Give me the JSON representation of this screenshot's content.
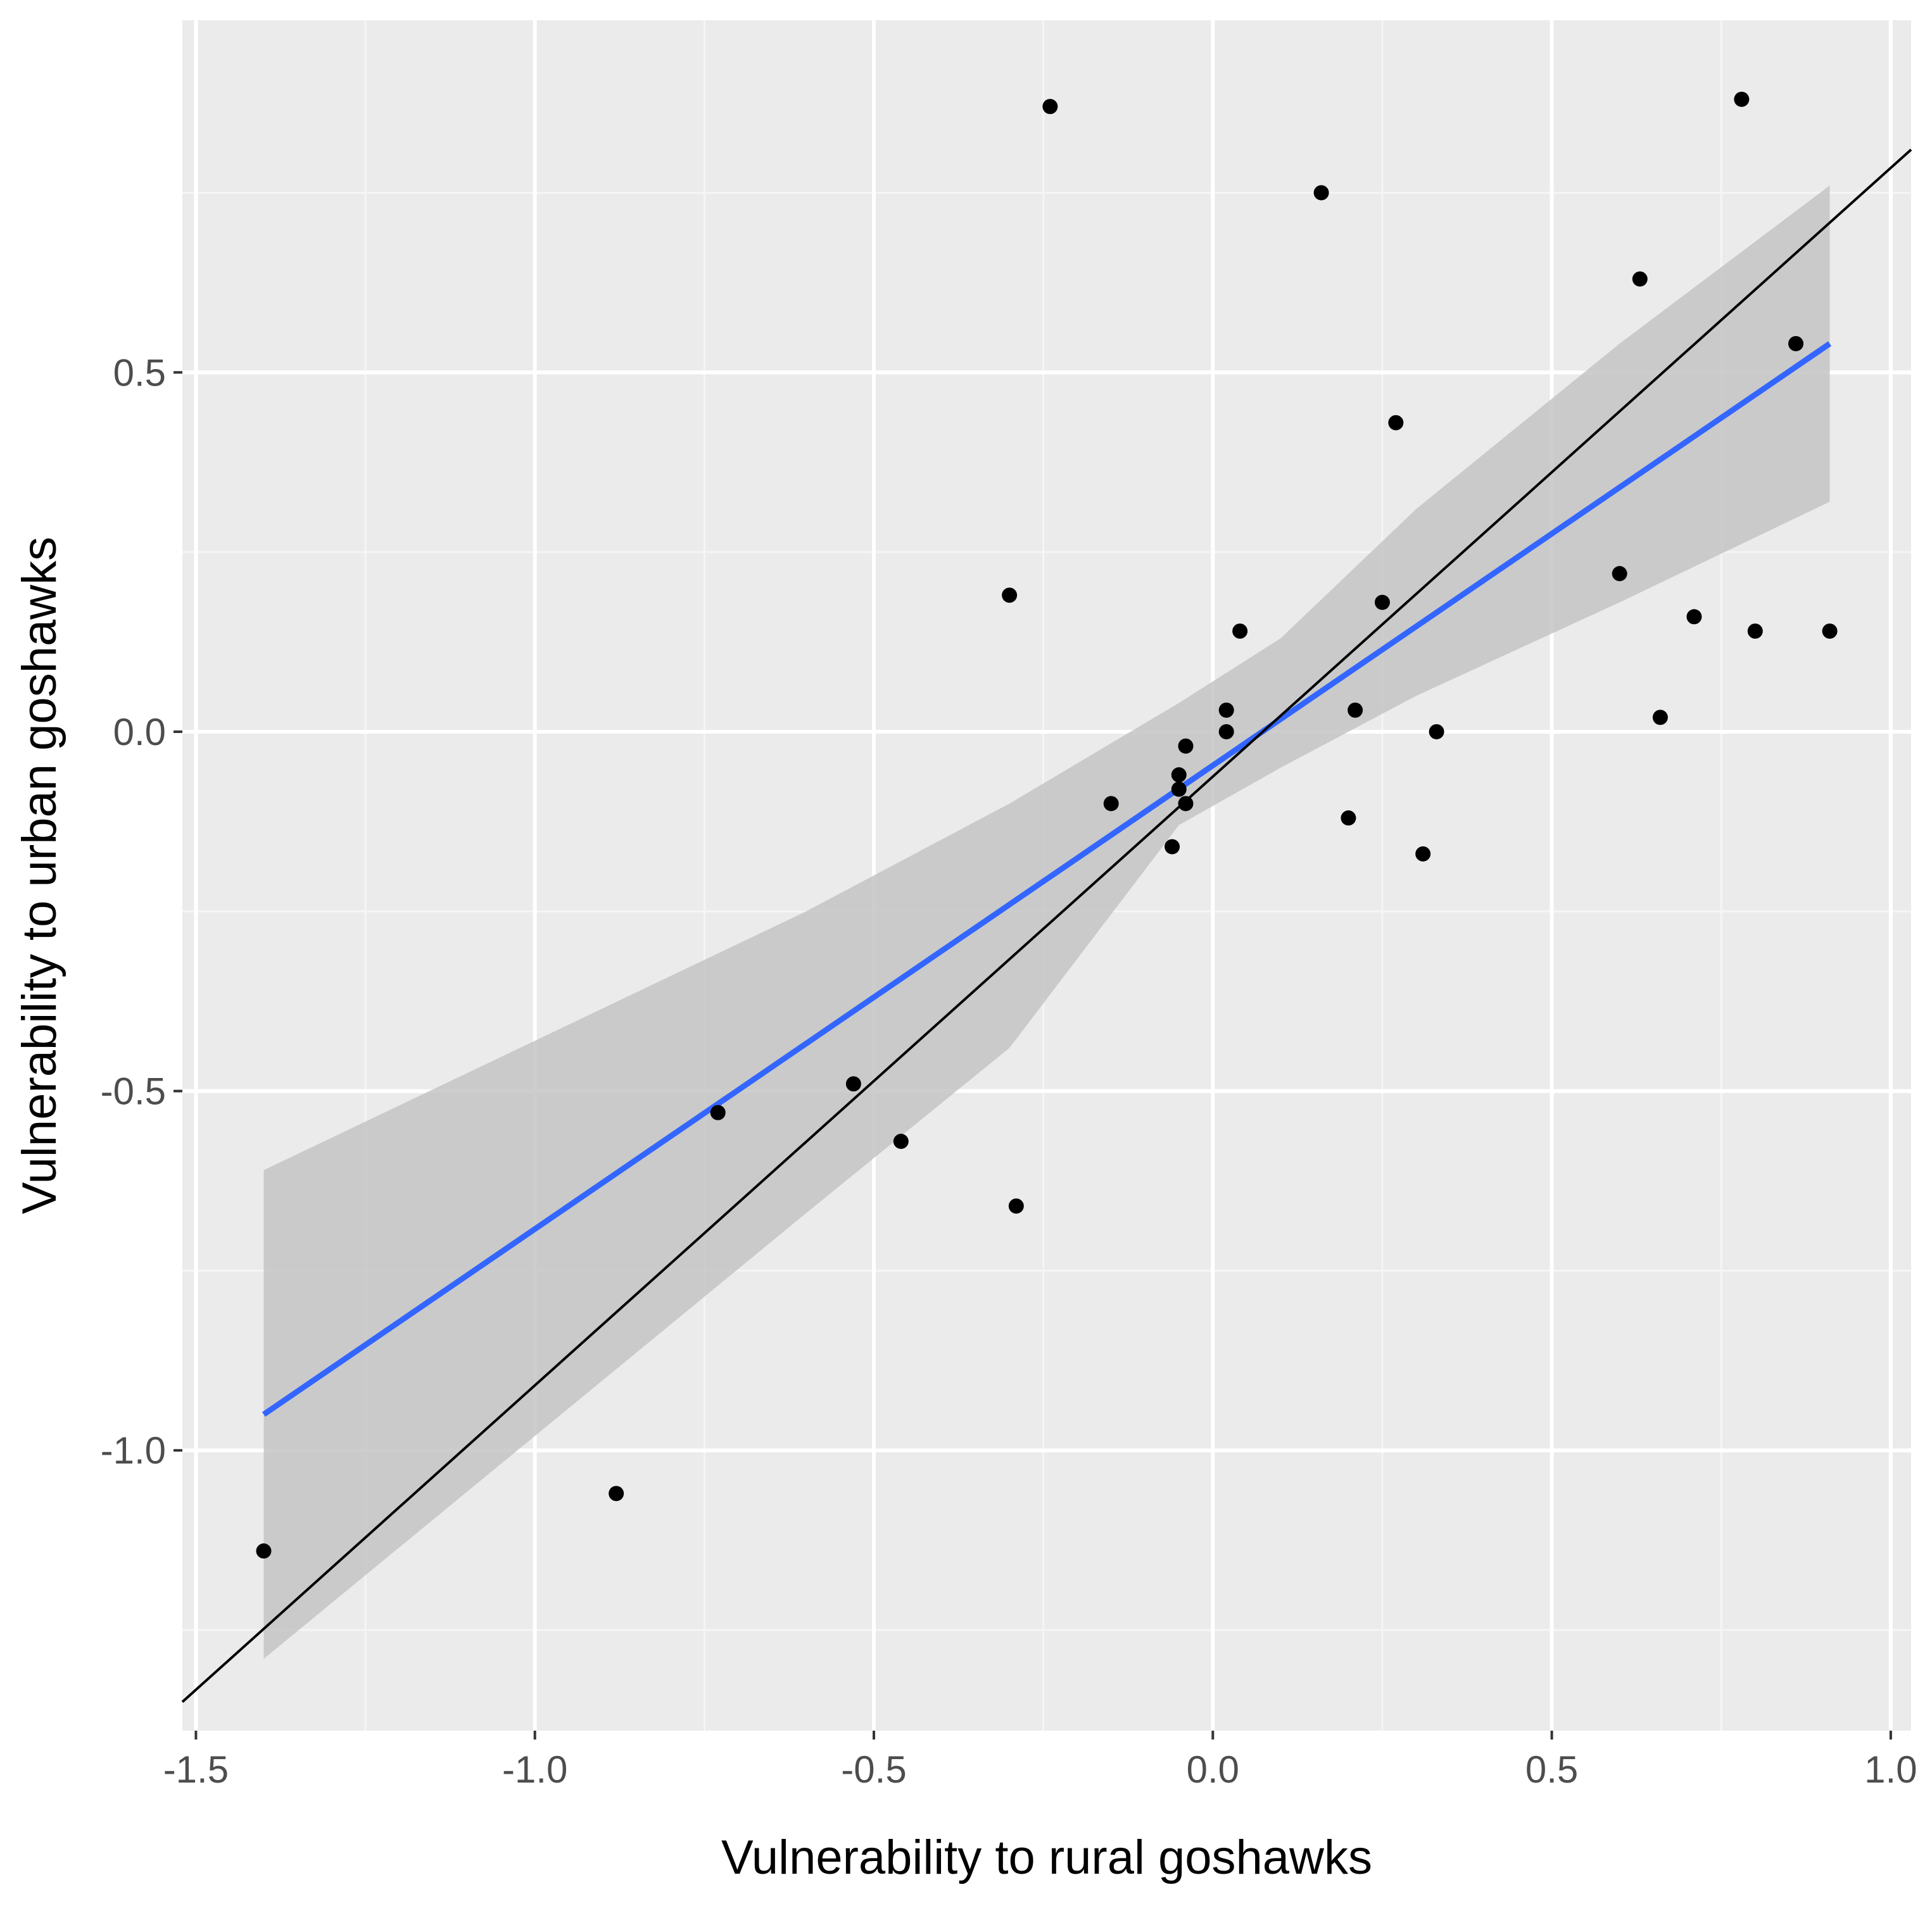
{
  "chart_data": {
    "type": "scatter",
    "title": "",
    "xlabel": "Vulnerability to rural goshawks",
    "ylabel": "Vulnerability to urban goshawks",
    "xlim": [
      -1.52,
      1.03
    ],
    "ylim": [
      -1.39,
      0.99
    ],
    "x_ticks": [
      -1.5,
      -1.0,
      -0.5,
      0.0,
      0.5,
      1.0
    ],
    "x_tick_labels": [
      "-1.5",
      "-1.0",
      "-0.5",
      "0.0",
      "0.5",
      "1.0"
    ],
    "y_ticks": [
      -1.0,
      -0.5,
      0.0,
      0.5
    ],
    "y_tick_labels": [
      "-1.0",
      "-0.5",
      "0.0",
      "0.5"
    ],
    "grid": true,
    "series": [
      {
        "name": "species",
        "kind": "points",
        "color": "#000000",
        "x": [
          -1.4,
          -0.88,
          -0.73,
          -0.53,
          -0.46,
          -0.3,
          -0.29,
          -0.24,
          -0.15,
          -0.06,
          -0.05,
          -0.05,
          -0.04,
          -0.04,
          0.02,
          0.02,
          0.04,
          0.16,
          0.2,
          0.21,
          0.25,
          0.27,
          0.31,
          0.33,
          0.6,
          0.63,
          0.66,
          0.71,
          0.78,
          0.8,
          0.86,
          0.91
        ],
        "y": [
          -1.14,
          -1.06,
          -0.53,
          -0.49,
          -0.57,
          0.19,
          -0.66,
          0.87,
          -0.1,
          -0.16,
          -0.06,
          -0.08,
          -0.02,
          -0.1,
          0.03,
          0.0,
          0.14,
          0.75,
          -0.12,
          0.03,
          0.18,
          0.43,
          -0.17,
          0.0,
          0.22,
          0.63,
          0.02,
          0.16,
          0.88,
          0.14,
          0.54,
          0.14
        ]
      },
      {
        "name": "linear fit",
        "kind": "line",
        "color": "#3366ff",
        "x": [
          -1.4,
          0.91
        ],
        "y": [
          -0.95,
          0.54
        ]
      },
      {
        "name": "95% confidence band",
        "kind": "band",
        "color": "#c4c4c4",
        "x": [
          -1.4,
          -1.0,
          -0.6,
          -0.3,
          -0.05,
          0.1,
          0.3,
          0.6,
          0.91
        ],
        "lower": [
          -1.29,
          -0.98,
          -0.67,
          -0.44,
          -0.13,
          -0.05,
          0.05,
          0.18,
          0.32
        ],
        "upper": [
          -0.61,
          -0.43,
          -0.25,
          -0.1,
          0.04,
          0.13,
          0.31,
          0.54,
          0.76
        ]
      },
      {
        "name": "1:1 line",
        "kind": "line",
        "color": "#000000",
        "x": [
          -1.52,
          1.03
        ],
        "y": [
          -1.35,
          0.81
        ]
      }
    ]
  }
}
